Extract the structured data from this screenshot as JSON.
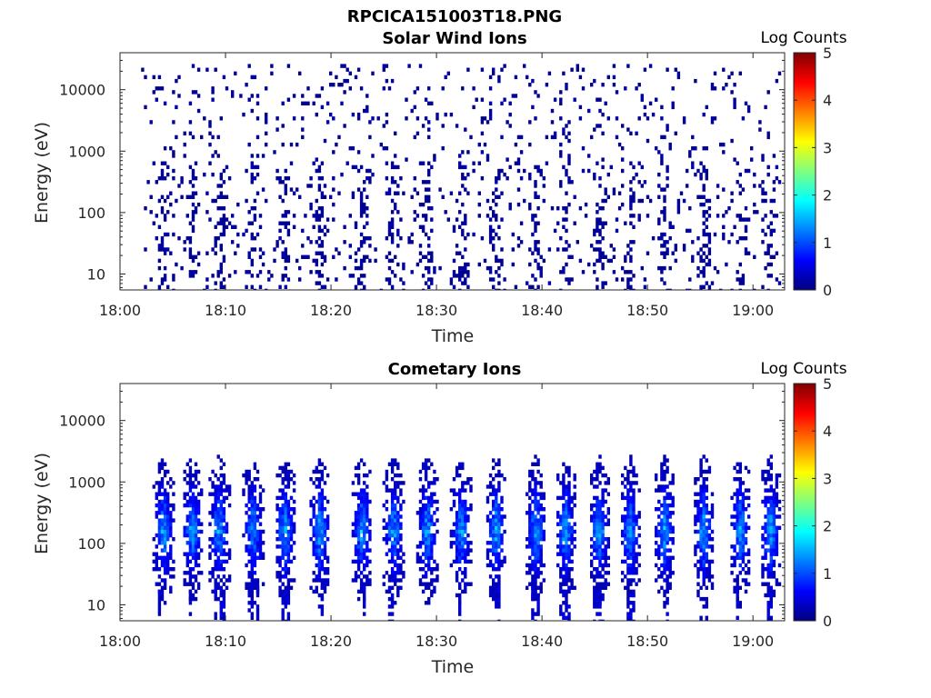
{
  "figure_title": "RPCICA151003T18.PNG",
  "colorbar_label": "Log Counts",
  "colorbar_ticks": [
    "0",
    "1",
    "2",
    "3",
    "4",
    "5"
  ],
  "colormap": "jet",
  "colors": {
    "jet": [
      "#00007f",
      "#0000ff",
      "#007fff",
      "#00ffff",
      "#7fff7f",
      "#ffff00",
      "#ff7f00",
      "#ff0000",
      "#7f0000"
    ]
  },
  "chart_data": [
    {
      "type": "heatmap",
      "title": "Solar Wind Ions",
      "xlabel": "Time",
      "ylabel": "Energy (eV)",
      "x_ticks": [
        "18:00",
        "18:10",
        "18:20",
        "18:30",
        "18:40",
        "18:50",
        "19:00"
      ],
      "x_range_minutes": [
        0,
        63
      ],
      "y_ticks": [
        "10",
        "100",
        "1000",
        "10000"
      ],
      "y_scale": "log",
      "y_range": [
        5.5,
        40000
      ],
      "z_range": [
        0,
        5
      ],
      "description_values": {
        "active_time_range_minutes": [
          2.0,
          62.5
        ],
        "typical_log_counts": 0.05,
        "max_energy_eV": 25000,
        "ion_bursts_minutes": [
          4.0,
          6.7,
          9.3,
          12.5,
          15.5,
          18.8,
          22.8,
          25.8,
          29.0,
          32.2,
          35.5,
          39.3,
          42.1,
          45.3,
          48.2,
          51.5,
          55.2,
          58.7,
          61.5
        ]
      }
    },
    {
      "type": "heatmap",
      "title": "Cometary Ions",
      "xlabel": "Time",
      "ylabel": "Energy (eV)",
      "x_ticks": [
        "18:00",
        "18:10",
        "18:20",
        "18:30",
        "18:40",
        "18:50",
        "19:00"
      ],
      "x_range_minutes": [
        0,
        63
      ],
      "y_ticks": [
        "10",
        "100",
        "1000",
        "10000"
      ],
      "y_scale": "log",
      "y_range": [
        5.5,
        40000
      ],
      "z_range": [
        0,
        5
      ],
      "description_values": {
        "peak_energy_eV": 150,
        "max_log_counts": 1.9,
        "ion_bursts_minutes": [
          4.0,
          6.7,
          9.3,
          12.5,
          15.5,
          18.8,
          22.8,
          25.8,
          29.0,
          32.2,
          35.5,
          39.3,
          42.1,
          45.3,
          48.2,
          51.5,
          55.2,
          58.7,
          61.5
        ]
      }
    }
  ]
}
